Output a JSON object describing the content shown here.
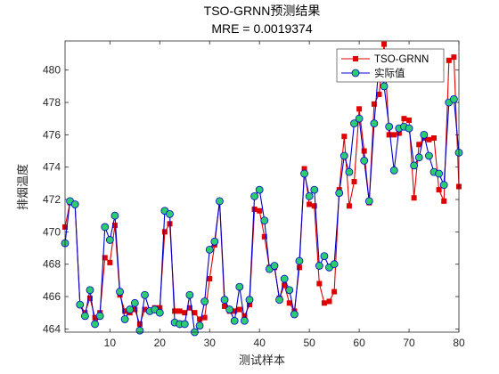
{
  "chart_data": {
    "type": "line",
    "title": "TSO-GRNN预测结果",
    "subtitle": "MRE = 0.0019374",
    "xlabel": "测试样本",
    "ylabel": "排烟温度",
    "xlim": [
      1,
      80
    ],
    "ylim": [
      463.8,
      481.8
    ],
    "xticks": [
      10,
      20,
      30,
      40,
      50,
      60,
      70,
      80
    ],
    "yticks": [
      464,
      466,
      468,
      470,
      472,
      474,
      476,
      478,
      480
    ],
    "grid": false,
    "legend_position": "top-right",
    "x": [
      1,
      2,
      3,
      4,
      5,
      6,
      7,
      8,
      9,
      10,
      11,
      12,
      13,
      14,
      15,
      16,
      17,
      18,
      19,
      20,
      21,
      22,
      23,
      24,
      25,
      26,
      27,
      28,
      29,
      30,
      31,
      32,
      33,
      34,
      35,
      36,
      37,
      38,
      39,
      40,
      41,
      42,
      43,
      44,
      45,
      46,
      47,
      48,
      49,
      50,
      51,
      52,
      53,
      54,
      55,
      56,
      57,
      58,
      59,
      60,
      61,
      62,
      63,
      64,
      65,
      66,
      67,
      68,
      69,
      70,
      71,
      72,
      73,
      74,
      75,
      76,
      77,
      78,
      79,
      80
    ],
    "series": [
      {
        "name": "TSO-GRNN",
        "color": "#e00000",
        "marker": "square",
        "values": [
          470.3,
          471.8,
          471.7,
          465.5,
          465.0,
          465.9,
          464.7,
          465.0,
          468.4,
          468.1,
          470.4,
          466.1,
          465.1,
          465.0,
          465.2,
          464.3,
          465.2,
          465.1,
          465.3,
          465.3,
          470.0,
          470.5,
          465.1,
          465.1,
          465.0,
          465.3,
          465.0,
          464.6,
          464.7,
          467.1,
          469.2,
          471.9,
          465.4,
          465.1,
          465.1,
          465.2,
          464.8,
          465.5,
          471.4,
          471.3,
          469.7,
          467.8,
          467.8,
          465.9,
          466.7,
          465.6,
          465.1,
          467.8,
          473.9,
          471.7,
          471.6,
          466.8,
          465.6,
          465.7,
          466.3,
          472.6,
          475.9,
          471.6,
          473.1,
          477.6,
          475.0,
          471.8,
          477.9,
          478.5,
          481.6,
          476.0,
          476.0,
          476.1,
          477.0,
          476.9,
          472.1,
          475.4,
          475.8,
          475.7,
          475.8,
          472.6,
          471.9,
          480.6,
          480.8,
          472.8
        ]
      },
      {
        "name": "实际值",
        "color": "#0000cc",
        "marker_fill": "#2ecc71",
        "marker": "circle",
        "values": [
          469.3,
          471.9,
          471.7,
          465.5,
          464.8,
          466.4,
          464.3,
          464.8,
          470.3,
          469.5,
          471.0,
          466.3,
          464.6,
          465.2,
          465.6,
          463.9,
          466.1,
          465.1,
          465.2,
          465.0,
          471.3,
          471.1,
          464.4,
          464.3,
          464.3,
          466.1,
          463.8,
          464.2,
          465.7,
          468.9,
          469.4,
          471.9,
          465.8,
          465.2,
          464.5,
          466.6,
          464.5,
          465.8,
          472.2,
          472.6,
          470.7,
          467.7,
          467.9,
          465.8,
          467.1,
          466.4,
          464.9,
          468.2,
          473.6,
          472.2,
          472.6,
          467.9,
          468.5,
          467.8,
          468.0,
          472.4,
          474.7,
          473.7,
          476.7,
          477.0,
          474.4,
          471.9,
          476.7,
          480.5,
          479.0,
          476.5,
          473.8,
          476.4,
          476.5,
          476.4,
          474.1,
          474.6,
          476.0,
          474.7,
          473.7,
          473.6,
          472.9,
          478.0,
          478.2,
          474.9
        ]
      }
    ]
  }
}
